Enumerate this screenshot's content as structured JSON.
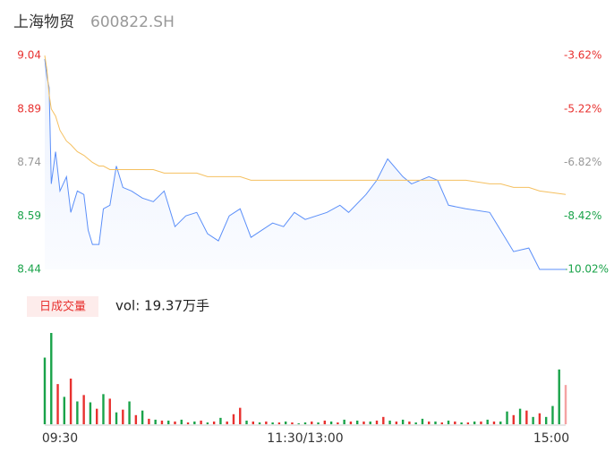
{
  "header": {
    "name": "上海物贸",
    "code": "600822.SH"
  },
  "volume_tab": "日成交量",
  "volume_label": "vol: 19.37万手",
  "chart_data": [
    {
      "type": "line",
      "x": [
        0,
        1,
        2,
        3,
        5,
        7,
        10,
        12,
        15,
        18,
        20,
        22,
        25,
        27,
        30,
        33,
        36,
        40,
        45,
        50,
        55,
        60,
        65,
        70,
        75,
        80,
        85,
        90,
        95,
        100,
        105,
        110,
        115,
        120,
        130,
        136,
        140,
        148,
        153,
        158,
        165,
        169,
        177,
        181,
        186,
        194,
        205,
        210,
        216,
        223,
        228,
        240
      ],
      "series": [
        {
          "color": "#5b8ff9",
          "values": [
            9.03,
            8.98,
            8.95,
            8.68,
            8.77,
            8.66,
            8.7,
            8.6,
            8.66,
            8.65,
            8.55,
            8.51,
            8.51,
            8.61,
            8.62,
            8.73,
            8.67,
            8.66,
            8.64,
            8.63,
            8.66,
            8.56,
            8.59,
            8.6,
            8.54,
            8.52,
            8.59,
            8.61,
            8.53,
            8.55,
            8.57,
            8.56,
            8.6,
            8.58,
            8.6,
            8.62,
            8.6,
            8.65,
            8.69,
            8.75,
            8.7,
            8.68,
            8.7,
            8.69,
            8.62,
            8.61,
            8.6,
            8.55,
            8.49,
            8.5,
            8.44,
            8.44
          ]
        },
        {
          "color": "#f5c060",
          "values": [
            9.04,
            9.0,
            8.93,
            8.89,
            8.87,
            8.83,
            8.8,
            8.79,
            8.77,
            8.76,
            8.75,
            8.74,
            8.73,
            8.73,
            8.72,
            8.72,
            8.72,
            8.72,
            8.72,
            8.72,
            8.71,
            8.71,
            8.71,
            8.71,
            8.7,
            8.7,
            8.7,
            8.7,
            8.69,
            8.69,
            8.69,
            8.69,
            8.69,
            8.69,
            8.69,
            8.69,
            8.69,
            8.69,
            8.69,
            8.69,
            8.69,
            8.69,
            8.69,
            8.69,
            8.69,
            8.69,
            8.68,
            8.68,
            8.67,
            8.67,
            8.66,
            8.65
          ]
        }
      ],
      "xlim": [
        0,
        240
      ],
      "ylim": [
        8.44,
        9.04
      ],
      "yticks": [
        9.04,
        8.89,
        8.74,
        8.59,
        8.44
      ],
      "ytick_colors": [
        "#e8312f",
        "#e8312f",
        "#999999",
        "#1aa34a",
        "#1aa34a"
      ],
      "y2lim": [
        -10.02,
        -3.62
      ],
      "y2ticks": [
        {
          "value": -3.62,
          "label": "-3.62%"
        },
        {
          "value": -5.22,
          "label": "-5.22%"
        },
        {
          "value": -6.82,
          "label": "-6.82%"
        },
        {
          "value": -8.42,
          "label": "-8.42%"
        },
        {
          "value": -10.02,
          "label": "-10.02%"
        }
      ],
      "y2tick_colors": [
        "#e8312f",
        "#e8312f",
        "#999999",
        "#1aa34a",
        "#1aa34a"
      ]
    },
    {
      "type": "bar",
      "x": [
        0,
        3,
        6,
        9,
        12,
        15,
        18,
        21,
        24,
        27,
        30,
        33,
        36,
        39,
        42,
        45,
        48,
        51,
        54,
        57,
        60,
        63,
        66,
        69,
        72,
        75,
        78,
        81,
        84,
        87,
        90,
        93,
        96,
        99,
        102,
        105,
        108,
        111,
        114,
        117,
        120,
        123,
        126,
        129,
        132,
        135,
        138,
        141,
        144,
        147,
        150,
        153,
        156,
        159,
        162,
        165,
        168,
        171,
        174,
        177,
        180,
        183,
        186,
        189,
        192,
        195,
        198,
        201,
        204,
        207,
        210,
        213,
        216,
        219,
        222,
        225,
        228,
        231,
        234,
        237,
        240
      ],
      "values": [
        7300,
        10000,
        4400,
        3000,
        5000,
        2500,
        3200,
        2400,
        1700,
        3300,
        2800,
        1300,
        1600,
        2500,
        1000,
        1500,
        600,
        500,
        400,
        400,
        300,
        500,
        200,
        300,
        400,
        200,
        300,
        700,
        300,
        1100,
        1800,
        400,
        300,
        200,
        300,
        200,
        200,
        300,
        200,
        100,
        200,
        300,
        200,
        400,
        300,
        200,
        500,
        300,
        400,
        300,
        300,
        400,
        800,
        400,
        300,
        500,
        300,
        200,
        600,
        300,
        300,
        200,
        400,
        300,
        200,
        200,
        300,
        300,
        500,
        300,
        300,
        1400,
        1000,
        1700,
        1500,
        800,
        1200,
        800,
        2000,
        6000,
        4300
      ],
      "colors": [
        "#1aa34a",
        "#1aa34a",
        "#e8312f",
        "#1aa34a",
        "#e8312f",
        "#1aa34a",
        "#e8312f",
        "#1aa34a",
        "#e8312f",
        "#1aa34a",
        "#e8312f",
        "#1aa34a",
        "#e8312f",
        "#1aa34a",
        "#e8312f",
        "#1aa34a",
        "#e8312f",
        "#1aa34a",
        "#e8312f",
        "#1aa34a",
        "#e8312f",
        "#1aa34a",
        "#e8312f",
        "#1aa34a",
        "#e8312f",
        "#1aa34a",
        "#e8312f",
        "#1aa34a",
        "#e8312f",
        "#e8312f",
        "#e8312f",
        "#1aa34a",
        "#e8312f",
        "#1aa34a",
        "#e8312f",
        "#1aa34a",
        "#e8312f",
        "#1aa34a",
        "#e8312f",
        "#1aa34a",
        "#1aa34a",
        "#e8312f",
        "#1aa34a",
        "#e8312f",
        "#1aa34a",
        "#e8312f",
        "#1aa34a",
        "#e8312f",
        "#1aa34a",
        "#e8312f",
        "#1aa34a",
        "#e8312f",
        "#e8312f",
        "#1aa34a",
        "#e8312f",
        "#1aa34a",
        "#e8312f",
        "#1aa34a",
        "#1aa34a",
        "#e8312f",
        "#1aa34a",
        "#e8312f",
        "#1aa34a",
        "#e8312f",
        "#1aa34a",
        "#e8312f",
        "#1aa34a",
        "#e8312f",
        "#1aa34a",
        "#e8312f",
        "#1aa34a",
        "#1aa34a",
        "#e8312f",
        "#1aa34a",
        "#e8312f",
        "#1aa34a",
        "#e8312f",
        "#1aa34a",
        "#1aa34a",
        "#1aa34a",
        "#f4a3a3"
      ],
      "xlim": [
        0,
        240
      ],
      "ylim": [
        0,
        10000
      ],
      "xticks": [
        {
          "value": 0,
          "label": "09:30"
        },
        {
          "value": 120,
          "label": "11:30/13:00"
        },
        {
          "value": 240,
          "label": "15:00"
        }
      ]
    }
  ]
}
